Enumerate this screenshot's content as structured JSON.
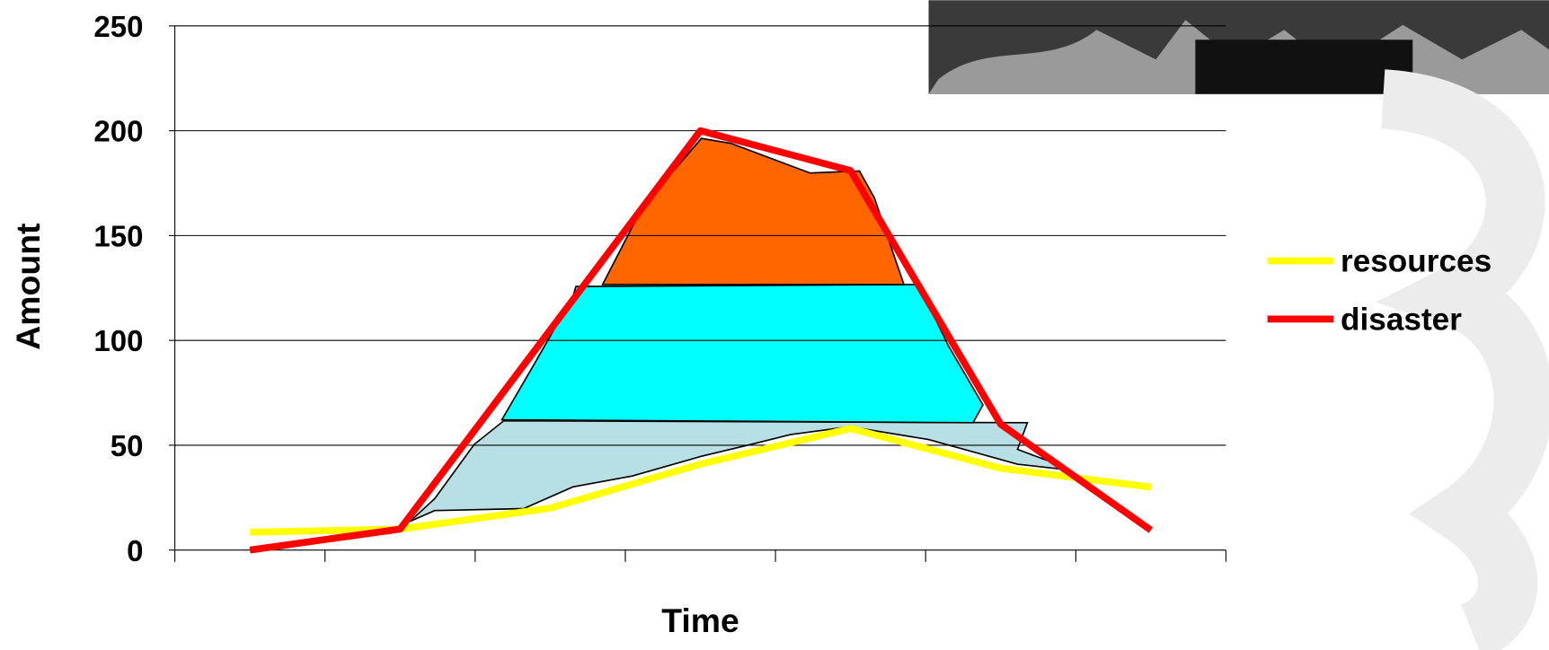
{
  "chart_data": {
    "type": "line",
    "x_label": "Time",
    "y_label": "Amount",
    "categories": [
      null,
      null,
      null,
      null,
      null,
      null,
      null
    ],
    "series": [
      {
        "name": "resources",
        "color": "#ffff00",
        "values": [
          8.5,
          10,
          20,
          41,
          58,
          39,
          30
        ]
      },
      {
        "name": "disaster",
        "color": "#ff0000",
        "values": [
          0,
          10,
          105,
          200,
          181,
          60,
          9.5
        ]
      }
    ],
    "ylim": [
      0,
      250
    ],
    "yticks": [
      0,
      50,
      100,
      150,
      200,
      250
    ],
    "grid": true,
    "legend": "right"
  }
}
